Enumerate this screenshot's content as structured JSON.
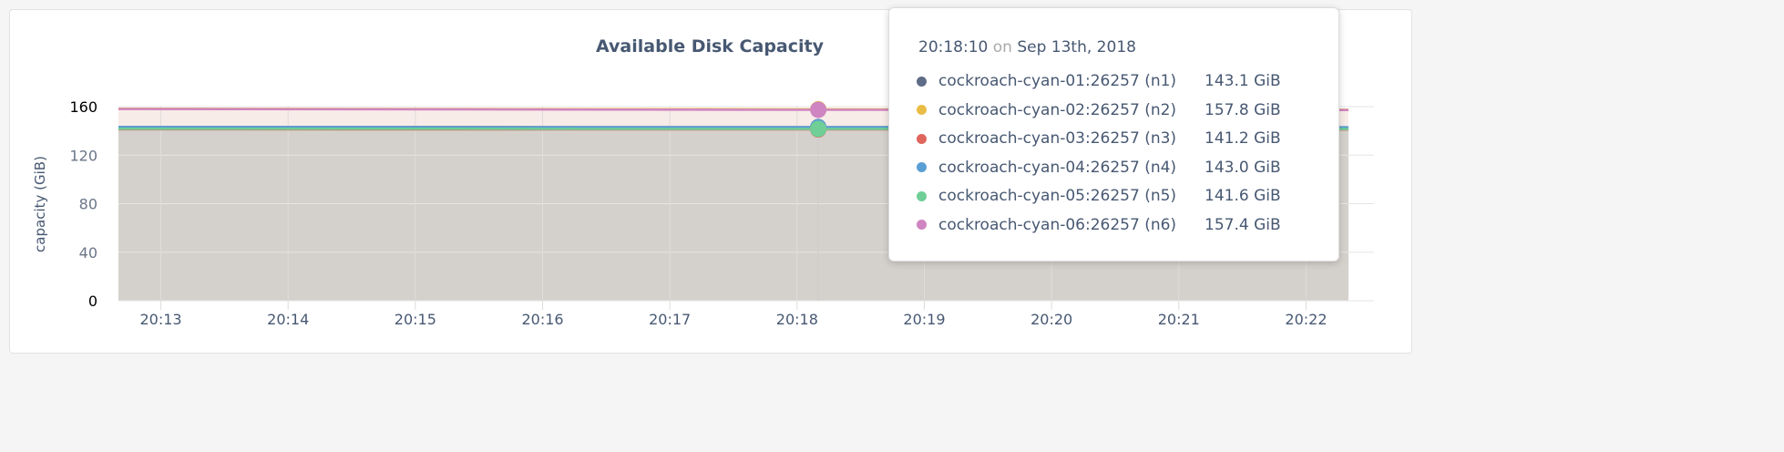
{
  "chart_data": {
    "type": "area",
    "title": "Available Disk Capacity",
    "ylabel": "capacity (GiB)",
    "ylim": [
      0,
      160
    ],
    "yticks": [
      "0",
      "40",
      "80",
      "120",
      "160"
    ],
    "xticks": [
      "20:13",
      "20:14",
      "20:15",
      "20:16",
      "20:17",
      "20:18",
      "20:19",
      "20:20",
      "20:21",
      "20:22"
    ],
    "xlim": [
      "20:12:40",
      "20:22:20"
    ],
    "grid": true,
    "x": [
      "20:12:40",
      "20:18:10",
      "20:22:20"
    ],
    "series": [
      {
        "name": "cockroach-cyan-01:26257 (n1)",
        "color": "#5f6c87",
        "values": [
          143.2,
          143.1,
          143.0
        ],
        "hover": "143.1 GiB"
      },
      {
        "name": "cockroach-cyan-02:26257 (n2)",
        "color": "#e9bd45",
        "values": [
          158.3,
          157.8,
          157.5
        ],
        "hover": "157.8 GiB"
      },
      {
        "name": "cockroach-cyan-03:26257 (n3)",
        "color": "#e0655d",
        "values": [
          141.3,
          141.2,
          141.1
        ],
        "hover": "141.2 GiB"
      },
      {
        "name": "cockroach-cyan-04:26257 (n4)",
        "color": "#5a9fd4",
        "values": [
          143.1,
          143.0,
          142.9
        ],
        "hover": "143.0 GiB"
      },
      {
        "name": "cockroach-cyan-05:26257 (n5)",
        "color": "#6fcf97",
        "values": [
          141.7,
          141.6,
          141.5
        ],
        "hover": "141.6 GiB"
      },
      {
        "name": "cockroach-cyan-06:26257 (n6)",
        "color": "#cf85c1",
        "values": [
          158.0,
          157.4,
          157.2
        ],
        "hover": "157.4 GiB"
      }
    ]
  },
  "tooltip": {
    "time": "20:18:10",
    "on": "on",
    "date": "Sep 13th, 2018",
    "hover_x": "20:18:10"
  }
}
